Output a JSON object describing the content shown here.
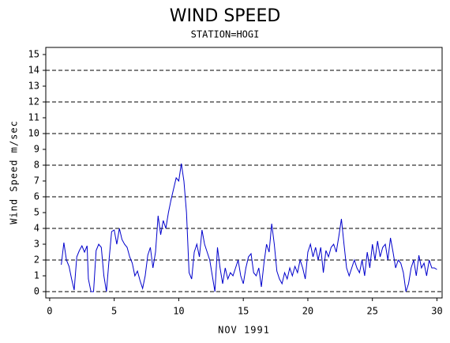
{
  "chart_data": {
    "type": "line",
    "title": "WIND SPEED",
    "subtitle": "STATION=HOGI",
    "x_label": "NOV 1991",
    "y_label": "Wind Speed m/sec",
    "xlim": [
      -0.3,
      30.4
    ],
    "ylim": [
      -0.4,
      15.45
    ],
    "xticks": [
      0,
      5,
      10,
      15,
      20,
      25,
      30
    ],
    "yticks": [
      0,
      1,
      2,
      3,
      4,
      5,
      6,
      7,
      8,
      9,
      10,
      11,
      12,
      13,
      14,
      15
    ],
    "grid": true,
    "series": [
      {
        "color": "#0000cc",
        "x": [
          0.9,
          1.1,
          1.3,
          1.5,
          1.7,
          1.9,
          2.1,
          2.3,
          2.5,
          2.7,
          2.9,
          3.0,
          3.2,
          3.4,
          3.6,
          3.8,
          4.0,
          4.2,
          4.4,
          4.6,
          4.8,
          5.0,
          5.2,
          5.4,
          5.6,
          5.8,
          6.0,
          6.2,
          6.4,
          6.6,
          6.8,
          7.0,
          7.2,
          7.4,
          7.6,
          7.8,
          8.0,
          8.2,
          8.4,
          8.6,
          8.8,
          9.0,
          9.2,
          9.4,
          9.6,
          9.8,
          10.0,
          10.2,
          10.4,
          10.6,
          10.8,
          11.0,
          11.2,
          11.4,
          11.6,
          11.8,
          12.0,
          12.2,
          12.4,
          12.6,
          12.8,
          13.0,
          13.2,
          13.4,
          13.6,
          13.8,
          14.0,
          14.2,
          14.4,
          14.6,
          14.8,
          15.0,
          15.2,
          15.4,
          15.6,
          15.8,
          16.0,
          16.2,
          16.4,
          16.6,
          16.8,
          17.0,
          17.2,
          17.4,
          17.6,
          17.8,
          18.0,
          18.2,
          18.4,
          18.6,
          18.8,
          19.0,
          19.2,
          19.4,
          19.6,
          19.8,
          20.0,
          20.2,
          20.4,
          20.6,
          20.8,
          21.0,
          21.2,
          21.4,
          21.6,
          21.8,
          22.0,
          22.2,
          22.4,
          22.6,
          22.8,
          23.0,
          23.2,
          23.4,
          23.6,
          23.8,
          24.0,
          24.2,
          24.4,
          24.6,
          24.8,
          25.0,
          25.2,
          25.4,
          25.6,
          25.8,
          26.0,
          26.2,
          26.4,
          26.6,
          26.8,
          27.0,
          27.2,
          27.4,
          27.6,
          27.8,
          28.0,
          28.2,
          28.4,
          28.6,
          28.8,
          29.0,
          29.2,
          29.4,
          29.6,
          29.8,
          30.0
        ],
        "values": [
          1.7,
          3.1,
          2.0,
          1.6,
          0.8,
          0.1,
          2.2,
          2.6,
          2.9,
          2.5,
          2.9,
          0.8,
          0.0,
          0.0,
          2.6,
          3.0,
          2.8,
          1.0,
          0.0,
          2.0,
          3.8,
          3.9,
          3.0,
          4.0,
          3.3,
          3.0,
          2.8,
          2.2,
          1.8,
          1.0,
          1.3,
          0.7,
          0.2,
          1.0,
          2.3,
          2.8,
          1.5,
          2.5,
          4.8,
          3.6,
          4.5,
          4.0,
          5.0,
          5.8,
          6.5,
          7.2,
          7.0,
          8.1,
          7.0,
          5.0,
          1.2,
          0.8,
          2.5,
          3.0,
          2.2,
          3.9,
          3.0,
          2.5,
          2.0,
          1.0,
          0.0,
          2.8,
          1.5,
          0.5,
          1.5,
          0.8,
          1.2,
          1.0,
          1.5,
          2.0,
          1.0,
          0.5,
          1.5,
          2.2,
          2.4,
          1.2,
          1.0,
          1.5,
          0.3,
          1.8,
          3.0,
          2.5,
          4.3,
          3.0,
          1.3,
          0.8,
          0.5,
          1.2,
          0.8,
          1.5,
          1.0,
          1.6,
          1.2,
          2.0,
          1.5,
          0.8,
          2.5,
          3.0,
          2.2,
          2.8,
          2.0,
          2.8,
          1.2,
          2.6,
          2.2,
          2.8,
          3.0,
          2.5,
          3.5,
          4.6,
          3.0,
          1.5,
          1.0,
          1.5,
          2.0,
          1.5,
          1.2,
          2.0,
          1.0,
          2.5,
          1.5,
          3.0,
          2.0,
          3.2,
          2.2,
          2.8,
          3.0,
          2.0,
          3.4,
          2.5,
          1.5,
          2.0,
          1.8,
          1.2,
          0.0,
          0.5,
          1.5,
          2.0,
          1.0,
          2.3,
          1.5,
          1.8,
          1.0,
          2.0,
          1.5,
          1.5,
          1.4
        ]
      }
    ]
  }
}
